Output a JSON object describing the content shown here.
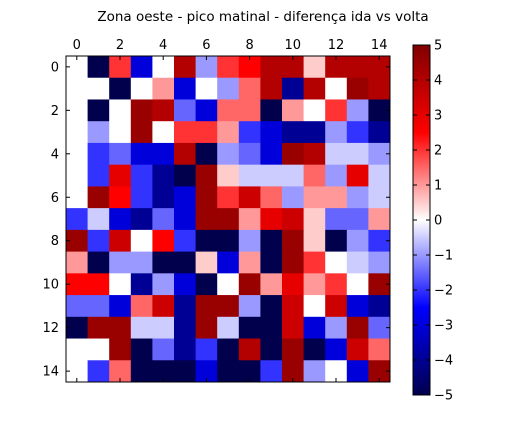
{
  "chart_data": {
    "type": "heatmap",
    "title": "Zona oeste - pico matinal - diferença ida vs volta",
    "xlabel": "",
    "ylabel": "",
    "x_ticks": [
      0,
      2,
      4,
      6,
      8,
      10,
      12,
      14
    ],
    "y_ticks": [
      0,
      2,
      4,
      6,
      8,
      10,
      12,
      14
    ],
    "x_range": [
      0,
      14
    ],
    "y_range": [
      0,
      14
    ],
    "colorbar": {
      "min": -5,
      "max": 5,
      "ticks": [
        5,
        4,
        3,
        2,
        1,
        0,
        -1,
        -2,
        -3,
        -4,
        -5
      ],
      "colormap": "seismic"
    },
    "grid": false,
    "matrix": [
      [
        0,
        -5,
        2,
        -3,
        0,
        4,
        -1,
        2,
        2.5,
        4,
        4,
        0.5,
        4,
        4,
        4
      ],
      [
        0,
        0,
        -5,
        0,
        1,
        -3,
        0,
        -1,
        1.5,
        4,
        -4,
        4,
        0,
        4.5,
        4
      ],
      [
        0,
        -5,
        0,
        4.5,
        4,
        -1.5,
        -3,
        1.5,
        1.5,
        -5,
        1,
        0,
        2,
        -1,
        -5
      ],
      [
        0,
        -1,
        0,
        4.5,
        0,
        2,
        2,
        1,
        -2,
        -3,
        -4,
        -4,
        -1,
        -2,
        -4
      ],
      [
        0,
        -2,
        -1.5,
        -3,
        -3,
        4,
        -5,
        -1,
        -1.5,
        -3,
        4.5,
        4,
        -0.5,
        -0.5,
        -1
      ],
      [
        0,
        -2,
        3,
        -2,
        -4,
        -5,
        4.5,
        0.5,
        -0.5,
        -0.5,
        -0.5,
        1.5,
        -1,
        3,
        -0.5
      ],
      [
        0,
        4.5,
        2.5,
        -2,
        -4,
        -3,
        4.5,
        2,
        3.5,
        1.5,
        -1,
        1,
        1,
        -1,
        -0.5
      ],
      [
        -2,
        -0.5,
        -3,
        -4,
        -1.5,
        -3,
        4.5,
        4.5,
        1,
        3,
        3.5,
        0.5,
        -1.5,
        -1.5,
        1
      ],
      [
        4.5,
        -2,
        3.5,
        0,
        2.5,
        -2,
        -5,
        -5,
        -1,
        -5,
        4.5,
        0.5,
        -5,
        -1,
        -2
      ],
      [
        1,
        -5,
        -1,
        -1,
        -5,
        -5,
        0.5,
        -3,
        1,
        -5,
        4.5,
        2,
        0,
        -0.5,
        -1
      ],
      [
        2.5,
        2.5,
        0,
        -4,
        -1,
        -3,
        -5,
        0,
        4.5,
        1,
        3,
        1,
        2,
        0,
        4.5
      ],
      [
        -1.5,
        -1.5,
        -3,
        1.5,
        3.5,
        -4,
        4.5,
        4.5,
        -1,
        -5,
        3.5,
        0,
        3.5,
        -3,
        -4
      ],
      [
        -5,
        4.5,
        4.5,
        -0.5,
        -0.5,
        -4,
        4.5,
        -0.5,
        -5,
        -5,
        3.5,
        -3,
        -1,
        4.5,
        -1.5
      ],
      [
        0,
        0,
        4.5,
        -5,
        -1.5,
        -4,
        -2,
        -5,
        4,
        -5,
        4.5,
        -5,
        -3,
        3.5,
        1.5
      ],
      [
        0,
        -2,
        1.5,
        -5,
        -5,
        -5,
        -3,
        -5,
        -5,
        -2,
        4.5,
        -1,
        0,
        -3,
        4.5
      ]
    ]
  }
}
